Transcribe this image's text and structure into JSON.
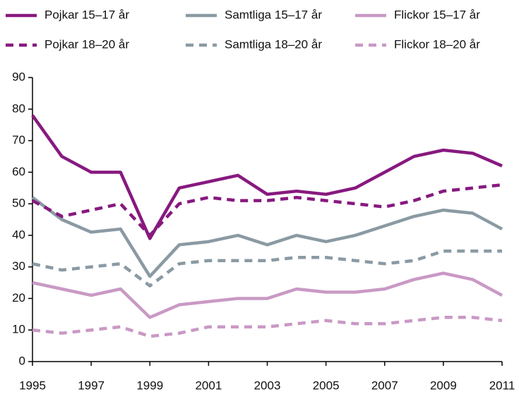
{
  "chart_data": {
    "type": "line",
    "x": [
      1995,
      1996,
      1997,
      1998,
      1999,
      2000,
      2001,
      2002,
      2003,
      2004,
      2005,
      2006,
      2007,
      2008,
      2009,
      2010,
      2011
    ],
    "xlim": [
      1995,
      2011
    ],
    "xticks": [
      1995,
      1997,
      1999,
      2001,
      2003,
      2005,
      2007,
      2009,
      2011
    ],
    "ylim": [
      0,
      90
    ],
    "yticks": [
      0,
      10,
      20,
      30,
      40,
      50,
      60,
      70,
      80,
      90
    ],
    "grid": false,
    "series": [
      {
        "name": "Pojkar 15–17 år",
        "color": "#87197f",
        "dashed": false,
        "values": [
          78,
          65,
          60,
          60,
          39,
          55,
          57,
          59,
          53,
          54,
          53,
          55,
          60,
          65,
          67,
          66,
          62
        ]
      },
      {
        "name": "Samtliga 15–17 år",
        "color": "#8a9aa3",
        "dashed": false,
        "values": [
          52,
          45,
          41,
          42,
          27,
          37,
          38,
          40,
          37,
          40,
          38,
          40,
          43,
          46,
          48,
          47,
          42
        ]
      },
      {
        "name": "Flickor 15–17 år",
        "color": "#c999c5",
        "dashed": false,
        "values": [
          25,
          23,
          21,
          23,
          14,
          18,
          19,
          20,
          20,
          23,
          22,
          22,
          23,
          26,
          28,
          26,
          21
        ]
      },
      {
        "name": "Pojkar 18–20 år",
        "color": "#87197f",
        "dashed": true,
        "values": [
          51,
          46,
          48,
          50,
          40,
          50,
          52,
          51,
          51,
          52,
          51,
          50,
          49,
          51,
          54,
          55,
          56
        ]
      },
      {
        "name": "Samtliga 18–20 år",
        "color": "#8a9aa3",
        "dashed": true,
        "values": [
          31,
          29,
          30,
          31,
          24,
          31,
          32,
          32,
          32,
          33,
          33,
          32,
          31,
          32,
          35,
          35,
          35
        ]
      },
      {
        "name": "Flickor 18–20 år",
        "color": "#c999c5",
        "dashed": true,
        "values": [
          10,
          9,
          10,
          11,
          8,
          9,
          11,
          11,
          11,
          12,
          13,
          12,
          12,
          13,
          14,
          14,
          13
        ]
      }
    ]
  }
}
